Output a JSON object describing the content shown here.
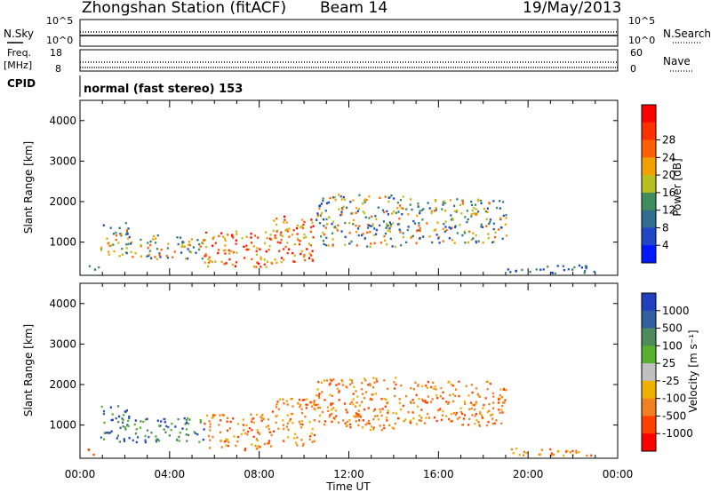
{
  "header": {
    "title": "Zhongshan Station (fitACF)",
    "beam": "Beam 14",
    "date": "19/May/2013"
  },
  "panels": {
    "nsky": {
      "left_label": "N.Sky",
      "right_label": "N.Search",
      "left_ticks": [
        "10^5",
        "10^0"
      ],
      "right_ticks": [
        "10^5",
        "10^0"
      ]
    },
    "freq": {
      "left_label_line1": "Freq.",
      "left_label_line2": "[MHz]",
      "right_label": "Nave",
      "left_ticks": [
        "18",
        "8"
      ],
      "right_ticks": [
        "60",
        "0"
      ]
    },
    "cpid": {
      "label": "CPID",
      "value": "normal (fast stereo) 153"
    }
  },
  "chart_data": [
    {
      "type": "heatmap",
      "title": "",
      "ylabel": "Slant Range [km]",
      "xlabel": "",
      "ylim": [
        180,
        4500
      ],
      "xlim": [
        0,
        24
      ],
      "y_ticks": [
        "1000",
        "2000",
        "3000",
        "4000"
      ],
      "colorbar": {
        "label": "Power [dB]",
        "tick_labels": [
          "4",
          "8",
          "12",
          "16",
          "20",
          "24",
          "28"
        ],
        "colors": [
          "#0018ff",
          "#1f47c8",
          "#2f6e8f",
          "#3f8c5f",
          "#b8c020",
          "#f0a000",
          "#ff6000",
          "#ff3000",
          "#ff0000"
        ]
      },
      "scatter_regions": [
        {
          "t0": 0.3,
          "t1": 0.8,
          "r0": 300,
          "r1": 450,
          "level": "low"
        },
        {
          "t0": 0.9,
          "t1": 2.3,
          "r0": 600,
          "r1": 1500,
          "level": "mid"
        },
        {
          "t0": 2.3,
          "t1": 5.5,
          "r0": 600,
          "r1": 1200,
          "level": "mid"
        },
        {
          "t0": 5.5,
          "t1": 8.5,
          "r0": 400,
          "r1": 1300,
          "level": "high"
        },
        {
          "t0": 8.5,
          "t1": 10.5,
          "r0": 500,
          "r1": 1700,
          "level": "high"
        },
        {
          "t0": 10.5,
          "t1": 14.5,
          "r0": 900,
          "r1": 2200,
          "level": "mid"
        },
        {
          "t0": 14.5,
          "t1": 19.0,
          "r0": 1000,
          "r1": 2100,
          "level": "mid"
        },
        {
          "t0": 19.0,
          "t1": 23.0,
          "r0": 250,
          "r1": 450,
          "level": "low"
        }
      ]
    },
    {
      "type": "heatmap",
      "title": "",
      "ylabel": "Slant Range [km]",
      "xlabel": "Time UT",
      "ylim": [
        180,
        4500
      ],
      "xlim": [
        0,
        24
      ],
      "y_ticks": [
        "1000",
        "2000",
        "3000",
        "4000"
      ],
      "x_ticks": [
        "00:00",
        "04:00",
        "08:00",
        "12:00",
        "16:00",
        "20:00",
        "00:00"
      ],
      "colorbar": {
        "label": "Velocity [m s⁻¹]",
        "tick_labels": [
          "1000",
          "500",
          "100",
          "25",
          "-25",
          "-100",
          "-500",
          "-1000"
        ],
        "colors": [
          "#2040c0",
          "#3060a0",
          "#4f8a5a",
          "#58b030",
          "#c0c0c0",
          "#f0b000",
          "#f08020",
          "#ff4000",
          "#ff0000"
        ]
      },
      "scatter_regions": [
        {
          "t0": 0.3,
          "t1": 0.8,
          "r0": 250,
          "r1": 450,
          "level": "neg"
        },
        {
          "t0": 0.9,
          "t1": 2.3,
          "r0": 600,
          "r1": 1500,
          "level": "pos"
        },
        {
          "t0": 2.3,
          "t1": 5.5,
          "r0": 600,
          "r1": 1200,
          "level": "pos"
        },
        {
          "t0": 5.5,
          "t1": 8.5,
          "r0": 400,
          "r1": 1300,
          "level": "neg"
        },
        {
          "t0": 8.5,
          "t1": 10.5,
          "r0": 500,
          "r1": 1700,
          "level": "neg"
        },
        {
          "t0": 10.5,
          "t1": 14.5,
          "r0": 900,
          "r1": 2200,
          "level": "neg"
        },
        {
          "t0": 14.5,
          "t1": 19.0,
          "r0": 1000,
          "r1": 2100,
          "level": "neg"
        },
        {
          "t0": 19.0,
          "t1": 23.0,
          "r0": 250,
          "r1": 450,
          "level": "neg"
        }
      ]
    }
  ]
}
